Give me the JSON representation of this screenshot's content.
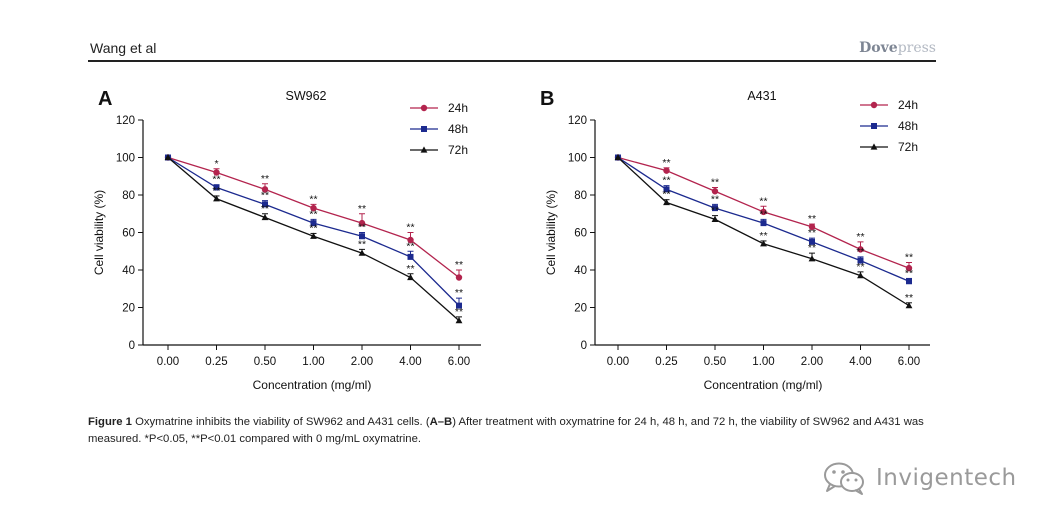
{
  "header": {
    "author": "Wang et al",
    "brand_part1": "Dove",
    "brand_part2": "press"
  },
  "caption": {
    "label": "Figure 1",
    "text_intro": " Oxymatrine inhibits the viability of SW962 and A431 cells. (",
    "panels": "A–B",
    "text_body": ") After treatment with oxymatrine for 24 h, 48 h, and 72 h, the viability of SW962 and A431 was measured. *P<0.05, **P<0.01 compared with 0 mg/mL oxymatrine."
  },
  "watermark": {
    "text": "Invigentech",
    "icon": "wechat-icon"
  },
  "chart_data": [
    {
      "panel": "A",
      "type": "line",
      "title": "SW962",
      "xlabel": "Concentration (mg/ml)",
      "ylabel": "Cell viability (%)",
      "categories": [
        "0.00",
        "0.25",
        "0.50",
        "1.00",
        "2.00",
        "4.00",
        "6.00"
      ],
      "ylim": [
        0,
        120
      ],
      "yticks": [
        0,
        20,
        40,
        60,
        80,
        100,
        120
      ],
      "legend_position": "top-right",
      "grid": false,
      "series": [
        {
          "name": "24h",
          "marker": "circle",
          "color": "#b3244e",
          "values": [
            100,
            92,
            83,
            73,
            65,
            56,
            36
          ],
          "errors": [
            0,
            2,
            3,
            2,
            5,
            4,
            4
          ],
          "sig": [
            "",
            "*",
            "**",
            "**",
            "**",
            "**",
            "**"
          ]
        },
        {
          "name": "48h",
          "marker": "square",
          "color": "#1c2a8f",
          "values": [
            100,
            84,
            75,
            65,
            58,
            47,
            21
          ],
          "errors": [
            0,
            1.5,
            2,
            2,
            2,
            3,
            4
          ],
          "sig": [
            "",
            "**",
            "**",
            "**",
            "**",
            "**",
            "**"
          ]
        },
        {
          "name": "72h",
          "marker": "triangle",
          "color": "#111111",
          "values": [
            100,
            78,
            68,
            58,
            49,
            36,
            13
          ],
          "errors": [
            0,
            1.5,
            2,
            1.5,
            2,
            2,
            2
          ],
          "sig": [
            "",
            "**",
            "**",
            "**",
            "**",
            "**",
            "**"
          ]
        }
      ]
    },
    {
      "panel": "B",
      "type": "line",
      "title": "A431",
      "xlabel": "Concentration (mg/ml)",
      "ylabel": "Cell viability (%)",
      "categories": [
        "0.00",
        "0.25",
        "0.50",
        "1.00",
        "2.00",
        "4.00",
        "6.00"
      ],
      "ylim": [
        0,
        120
      ],
      "yticks": [
        0,
        20,
        40,
        60,
        80,
        100,
        120
      ],
      "legend_position": "top-right",
      "grid": false,
      "series": [
        {
          "name": "24h",
          "marker": "circle",
          "color": "#b3244e",
          "values": [
            100,
            93,
            82,
            71,
            63,
            51,
            41
          ],
          "errors": [
            0,
            1.5,
            2,
            3,
            1.5,
            4,
            3
          ],
          "sig": [
            "",
            "**",
            "**",
            "**",
            "**",
            "**",
            "**"
          ]
        },
        {
          "name": "48h",
          "marker": "square",
          "color": "#1c2a8f",
          "values": [
            100,
            83,
            73,
            65,
            55,
            45,
            34
          ],
          "errors": [
            0,
            2,
            2,
            2,
            2,
            2,
            1.5
          ],
          "sig": [
            "",
            "**",
            "**",
            "**",
            "**",
            "**",
            "**"
          ]
        },
        {
          "name": "72h",
          "marker": "triangle",
          "color": "#111111",
          "values": [
            100,
            76,
            67,
            54,
            46,
            37,
            21
          ],
          "errors": [
            0,
            1.5,
            2,
            1.5,
            3,
            2,
            1.5
          ],
          "sig": [
            "",
            "**",
            "**",
            "**",
            "**",
            "**",
            "**"
          ]
        }
      ]
    }
  ]
}
